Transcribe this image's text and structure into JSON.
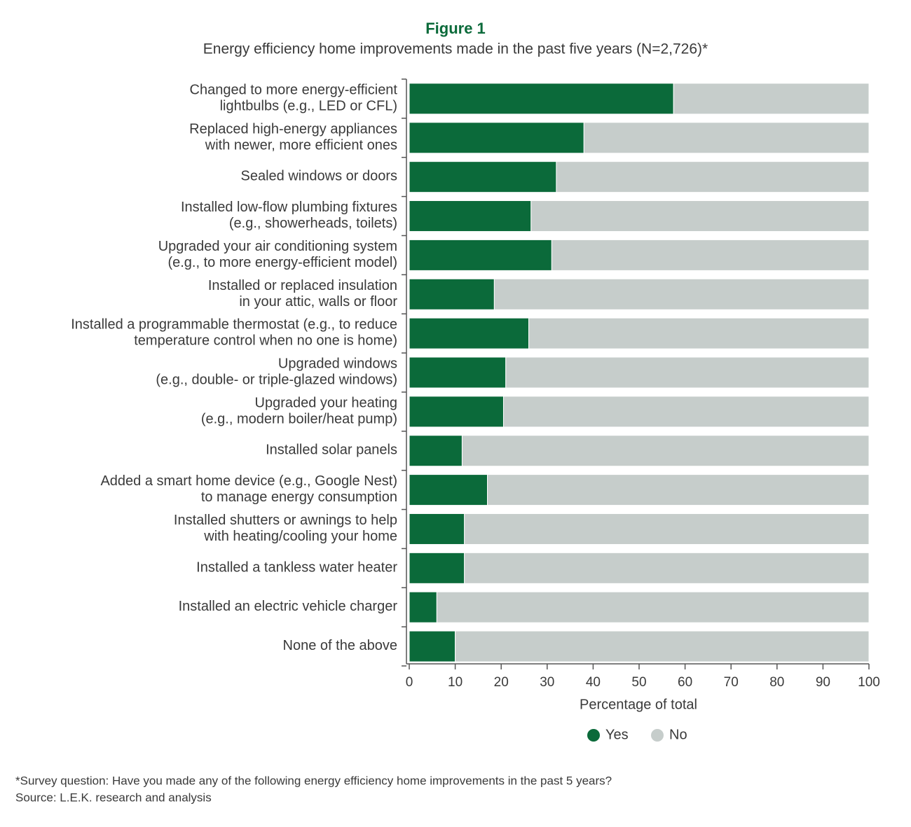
{
  "chart_data": {
    "type": "stacked_barh",
    "title": "Figure 1",
    "subtitle": "Energy efficiency home improvements made in the past five years (N=2,726)*",
    "categories": [
      "Changed to more energy-efficient\nlightbulbs (e.g., LED or CFL)",
      "Replaced high-energy appliances\nwith newer, more efficient ones",
      "Sealed windows or doors",
      "Installed low-flow plumbing fixtures\n(e.g., showerheads, toilets)",
      "Upgraded your air conditioning system\n(e.g., to more energy-efficient model)",
      "Installed or replaced insulation\nin your attic, walls or floor",
      "Installed a programmable thermostat (e.g., to reduce\ntemperature control when no one is home)",
      "Upgraded windows\n(e.g., double- or triple-glazed windows)",
      "Upgraded your heating\n(e.g., modern boiler/heat pump)",
      "Installed solar panels",
      "Added a smart home device (e.g., Google Nest)\nto manage energy consumption",
      "Installed shutters or awnings to help\nwith heating/cooling your home",
      "Installed a tankless water heater",
      "Installed an electric vehicle charger",
      "None of the above"
    ],
    "series": [
      {
        "name": "Yes",
        "color": "#0b6a3a",
        "values": [
          57.5,
          38,
          32,
          26.5,
          31,
          18.5,
          26,
          21,
          20.5,
          11.5,
          17,
          12,
          12,
          6,
          10
        ]
      },
      {
        "name": "No",
        "color": "#c6cdcb",
        "values": [
          42.5,
          62,
          68,
          73.5,
          69,
          81.5,
          74,
          79,
          79.5,
          88.5,
          83,
          88,
          88,
          94,
          90
        ]
      }
    ],
    "xlim": [
      0,
      100
    ],
    "xticks": [
      0,
      10,
      20,
      30,
      40,
      50,
      60,
      70,
      80,
      90,
      100
    ],
    "xlabel": "Percentage of total",
    "legend": "bottom",
    "notes": [
      "*Survey question: Have you made any of the following energy efficiency home improvements in the past 5 years?",
      "Source: L.E.K. research and analysis"
    ]
  }
}
